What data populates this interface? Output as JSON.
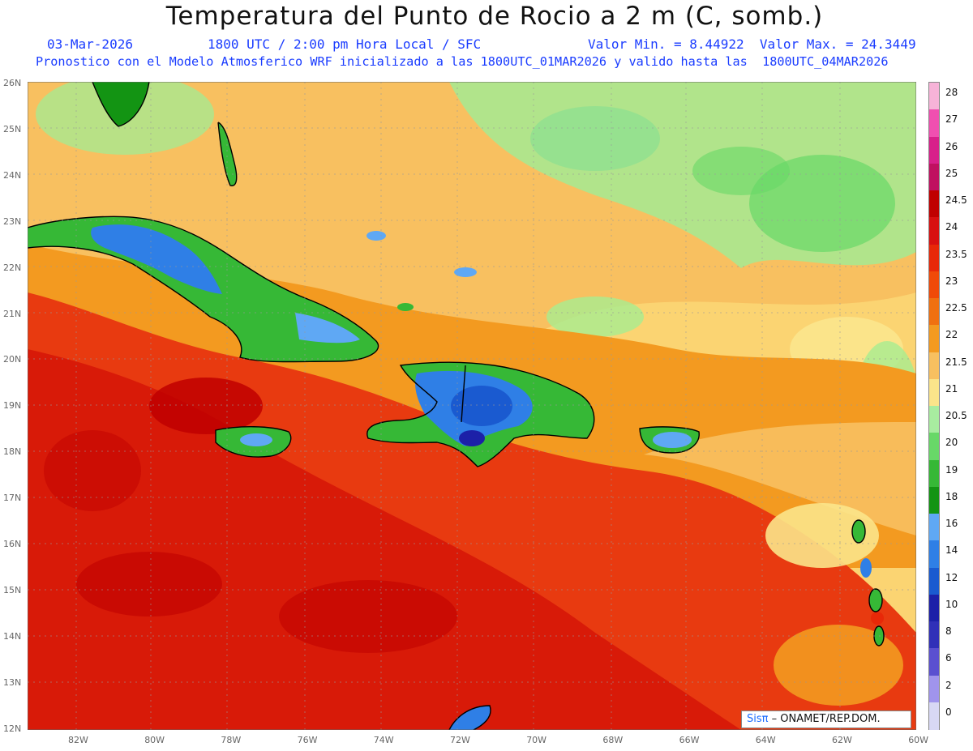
{
  "title": "Temperatura del Punto de Rocio a 2 m (C, somb.)",
  "subtitle": {
    "date": "03-Mar-2026",
    "time": "1800 UTC / 2:00 pm Hora Local / SFC",
    "min_max": "Valor Min. = 8.44922  Valor Max. = 24.3449",
    "model_line": "Pronostico con el Modelo Atmosferico WRF inicializado a las 1800UTC_01MAR2026 y valido hasta las  1800UTC_04MAR2026"
  },
  "credit": {
    "logo": "Sisπ",
    "text": "– ONAMET/REP.DOM."
  },
  "lat_labels": [
    "26N",
    "25N",
    "24N",
    "23N",
    "22N",
    "21N",
    "20N",
    "19N",
    "18N",
    "17N",
    "16N",
    "15N",
    "14N",
    "13N",
    "12N"
  ],
  "lon_labels": [
    "82W",
    "80W",
    "78W",
    "76W",
    "74W",
    "72W",
    "70W",
    "68W",
    "66W",
    "64W",
    "62W",
    "60W"
  ],
  "colorbar": {
    "labels": [
      "28",
      "27",
      "26",
      "25",
      "24.5",
      "24",
      "23.5",
      "23",
      "22.5",
      "22",
      "21.5",
      "21",
      "20.5",
      "20",
      "19",
      "18",
      "16",
      "14",
      "12",
      "10",
      "8",
      "6",
      "2",
      "0"
    ],
    "colors": [
      "#f7b3d8",
      "#f04fb0",
      "#d8208a",
      "#c01060",
      "#c00000",
      "#d81010",
      "#e82808",
      "#f04a08",
      "#f07010",
      "#f39a20",
      "#f8c060",
      "#fbe48a",
      "#a8eca0",
      "#68d868",
      "#36b836",
      "#139413",
      "#5fa8f4",
      "#2f7fe6",
      "#1a5ad0",
      "#1c20a8",
      "#3030b8",
      "#5a50d0",
      "#a094ec",
      "#d8d8f4"
    ]
  }
}
